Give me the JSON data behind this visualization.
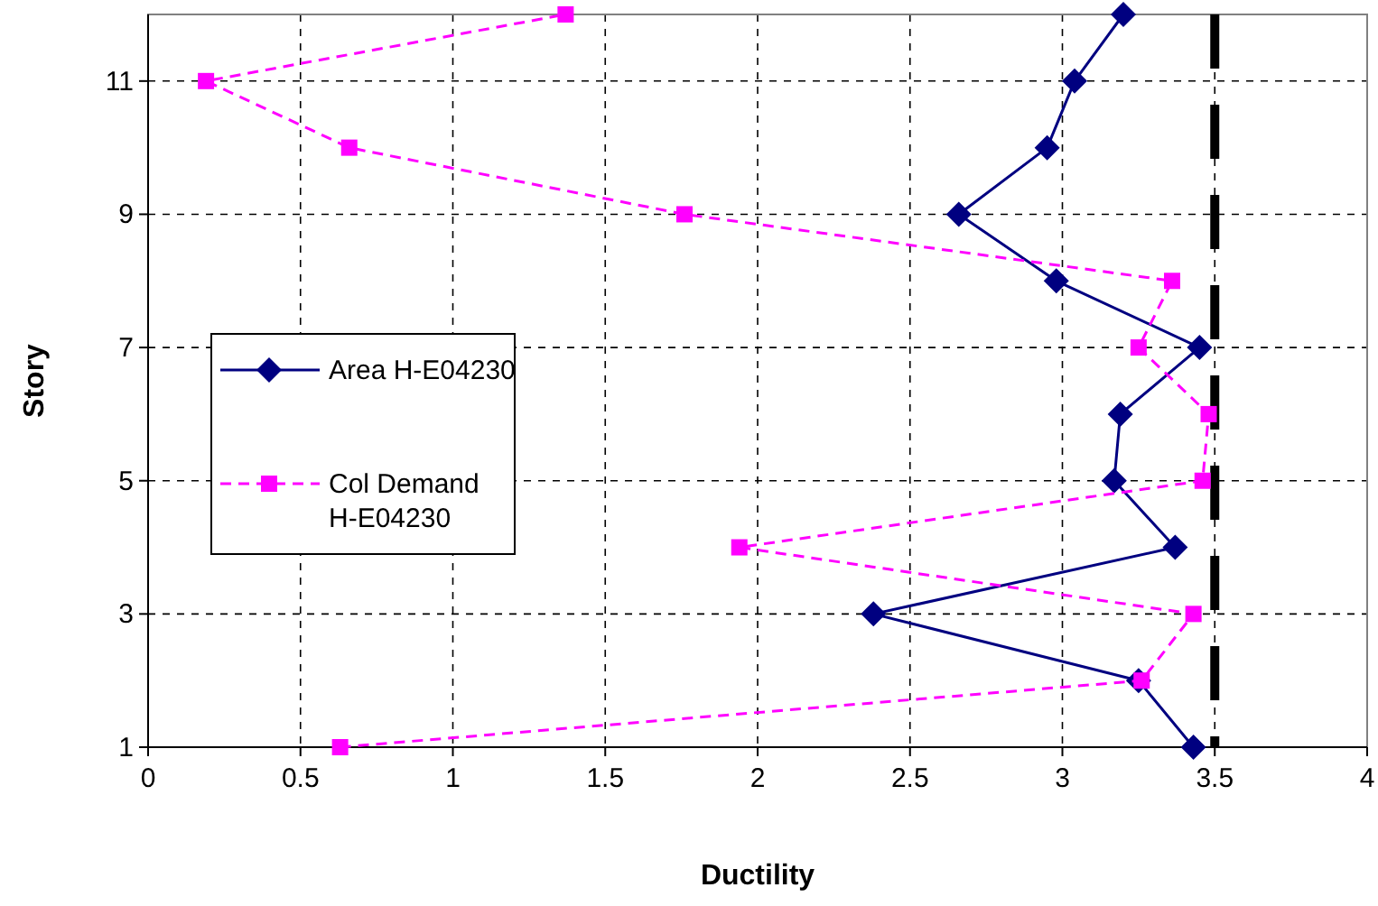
{
  "chart_data": {
    "type": "line",
    "xlabel": "Ductility",
    "ylabel": "Story",
    "x": [
      1,
      2,
      3,
      4,
      5,
      6,
      7,
      8,
      9,
      10,
      11,
      12
    ],
    "orientation": "horizontal",
    "series": [
      {
        "name": "Area H-E04230",
        "color": "#000080",
        "marker": "diamond",
        "line_style": "solid",
        "values": [
          3.43,
          3.25,
          2.38,
          3.37,
          3.17,
          3.19,
          3.45,
          2.98,
          2.66,
          2.95,
          3.04,
          3.2
        ]
      },
      {
        "name": "Col Demand H-E04230",
        "color": "#ff00ff",
        "marker": "square",
        "line_style": "dashed",
        "values": [
          0.63,
          3.26,
          3.43,
          1.94,
          3.46,
          3.48,
          3.25,
          3.36,
          1.76,
          0.66,
          0.19,
          1.37
        ]
      }
    ],
    "xlim": [
      0,
      4
    ],
    "xticks": [
      0,
      0.5,
      1,
      1.5,
      2,
      2.5,
      3,
      3.5,
      4
    ],
    "ylim": [
      1,
      12
    ],
    "yticks": [
      1,
      3,
      5,
      7,
      9,
      11
    ],
    "grid": true,
    "legend": "left",
    "ref_lines": [
      {
        "axis": "x",
        "value": 3.5,
        "color": "#000000",
        "line_style": "dashed"
      }
    ]
  }
}
